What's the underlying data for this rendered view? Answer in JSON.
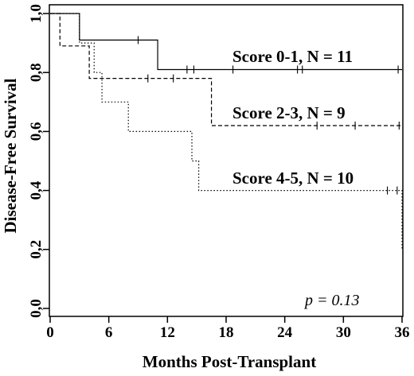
{
  "chart_data": {
    "type": "line",
    "step": true,
    "xlabel": "Months Post-Transplant",
    "ylabel": "Disease-Free Survival",
    "xlim": [
      0,
      36
    ],
    "ylim": [
      0,
      1
    ],
    "xticks": [
      "0",
      "6",
      "12",
      "18",
      "24",
      "30",
      "36"
    ],
    "yticks": [
      "0,0",
      "0,2",
      "0,4",
      "0,6",
      "0,8",
      "1,0"
    ],
    "grid": false,
    "annotation": "p = 0.13",
    "series": [
      {
        "name": "Score 0-1, N = 11",
        "line_style": "solid",
        "steps": [
          [
            0,
            1.0
          ],
          [
            3,
            0.91
          ],
          [
            11,
            0.81
          ],
          [
            36,
            0.81
          ]
        ],
        "censored": [
          9,
          14,
          14.7,
          18.7,
          25.3,
          25.8,
          35.6
        ]
      },
      {
        "name": "Score 2-3, N = 9",
        "line_style": "dashed",
        "steps": [
          [
            0,
            1.0
          ],
          [
            1,
            0.89
          ],
          [
            4,
            0.78
          ],
          [
            16.5,
            0.62
          ],
          [
            36,
            0.62
          ]
        ],
        "censored": [
          10,
          12.6,
          27.3,
          31.2,
          35.7
        ]
      },
      {
        "name": "Score 4-5, N = 10",
        "line_style": "dotted",
        "steps": [
          [
            0,
            1.0
          ],
          [
            3,
            0.9
          ],
          [
            4.5,
            0.8
          ],
          [
            5.3,
            0.7
          ],
          [
            8,
            0.6
          ],
          [
            14.5,
            0.5
          ],
          [
            15.2,
            0.4
          ],
          [
            36,
            0.4
          ],
          [
            36,
            0.2
          ]
        ],
        "censored": [
          34.5,
          35.5
        ]
      }
    ]
  }
}
